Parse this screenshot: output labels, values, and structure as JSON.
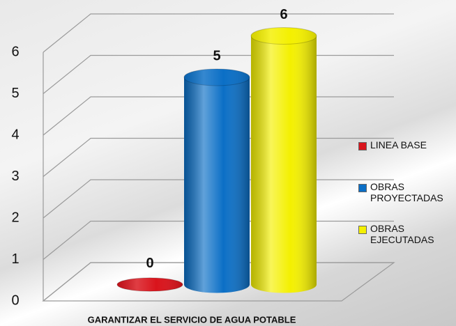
{
  "chart_data": {
    "type": "bar",
    "categories": [
      "GARANTIZAR EL SERVICIO DE AGUA POTABLE"
    ],
    "series": [
      {
        "name": "LINEA BASE",
        "color": "#d9141c",
        "values": [
          0
        ]
      },
      {
        "name": "OBRAS PROYECTADAS",
        "color": "#0b6fc6",
        "values": [
          5
        ]
      },
      {
        "name": "OBRAS EJECUTADAS",
        "color": "#f4f000",
        "values": [
          6
        ]
      }
    ],
    "ylim": [
      0,
      6
    ],
    "yticks": [
      0,
      1,
      2,
      3,
      4,
      5,
      6
    ],
    "grid": true,
    "legend": "right"
  }
}
